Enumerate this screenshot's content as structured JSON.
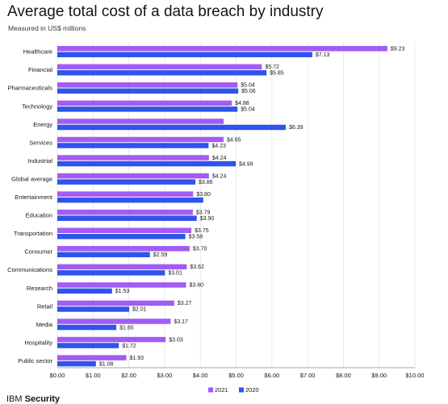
{
  "chart_data": {
    "type": "bar",
    "orientation": "horizontal",
    "title": "Average total cost of a data breach by industry",
    "subtitle": "Measured in US$ millions",
    "categories": [
      "Healthcare",
      "Financial",
      "Pharmaceuticals",
      "Technology",
      "Energy",
      "Services",
      "Industrial",
      "Global average",
      "Entertainment",
      "Education",
      "Transportation",
      "Consumer",
      "Communications",
      "Research",
      "Retail",
      "Media",
      "Hospitality",
      "Public sector"
    ],
    "series": [
      {
        "name": "2021",
        "color": "#a15cf5",
        "values": [
          9.23,
          5.72,
          5.04,
          4.88,
          4.65,
          4.65,
          4.24,
          4.24,
          3.8,
          3.79,
          3.75,
          3.7,
          3.62,
          3.6,
          3.27,
          3.17,
          3.03,
          1.93
        ],
        "labels": [
          "$9.23",
          "$5.72",
          "$5.04",
          "$4.88",
          "",
          "$4.65",
          "$4.24",
          "$4.24",
          "$3.80",
          "$3.79",
          "$3.75",
          "$3.70",
          "$3.62",
          "$3.60",
          "$3.27",
          "$3.17",
          "$3.03",
          "$1.93"
        ]
      },
      {
        "name": "2020",
        "color": "#2f54eb",
        "values": [
          7.13,
          5.85,
          5.06,
          5.04,
          6.39,
          4.23,
          4.99,
          3.86,
          4.08,
          3.9,
          3.58,
          2.59,
          3.01,
          1.53,
          2.01,
          1.65,
          1.72,
          1.08
        ],
        "labels": [
          "$7.13",
          "$5.85",
          "$5.06",
          "$5.04",
          "$6.39",
          "$4.23",
          "$4.99",
          "$3.86",
          "",
          "$3.90",
          "$3.58",
          "$2.59",
          "$3.01",
          "$1.53",
          "$2.01",
          "$1.65",
          "$1.72",
          "$1.08"
        ]
      }
    ],
    "xlim": [
      0,
      10
    ],
    "xticks": [
      "$0.00",
      "$1.00",
      "$2.00",
      "$3.00",
      "$4.00",
      "$5.00",
      "$6.00",
      "$7.00",
      "$8.00",
      "$9.00",
      "$10.00"
    ],
    "grid": true,
    "legend_position": "bottom-center"
  },
  "footer": {
    "brand": "IBM",
    "product": "Security"
  }
}
